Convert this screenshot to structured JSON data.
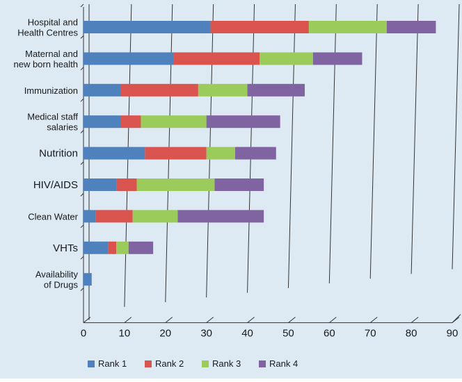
{
  "chart_data": {
    "type": "bar",
    "orientation": "horizontal",
    "stacked": true,
    "categories": [
      [
        "Hospital and",
        "Health Centres"
      ],
      [
        "Maternal and",
        "new born health"
      ],
      [
        "Immunization"
      ],
      [
        "Medical staff",
        "salaries"
      ],
      [
        "Nutrition"
      ],
      [
        "HIV/AIDS"
      ],
      [
        "Clean Water"
      ],
      [
        "VHTs"
      ],
      [
        "Availability",
        "of Drugs"
      ]
    ],
    "series": [
      {
        "name": "Rank 1",
        "color": "#4f81bd",
        "values": [
          31,
          22,
          9,
          9,
          15,
          8,
          3,
          6,
          2
        ]
      },
      {
        "name": "Rank 2",
        "color": "#d9534f",
        "values": [
          24,
          21,
          19,
          5,
          15,
          5,
          9,
          2,
          0
        ]
      },
      {
        "name": "Rank 3",
        "color": "#9bcb5b",
        "values": [
          19,
          13,
          12,
          16,
          7,
          19,
          11,
          3,
          0
        ]
      },
      {
        "name": "Rank 4",
        "color": "#8064a2",
        "values": [
          12,
          12,
          14,
          18,
          10,
          12,
          21,
          6,
          0
        ]
      }
    ],
    "xlim": [
      0,
      90
    ],
    "xticks": [
      0,
      10,
      20,
      30,
      40,
      50,
      60,
      70,
      80,
      90
    ],
    "grid": true,
    "legend": "bottom",
    "background": "#ddeaf3"
  }
}
